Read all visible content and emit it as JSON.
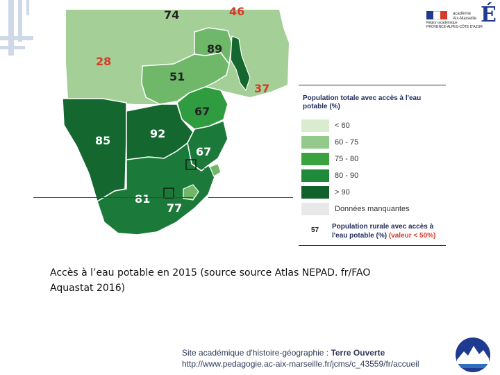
{
  "map": {
    "labels": [
      {
        "id": "74",
        "text": "74",
        "color": "#222222"
      },
      {
        "id": "46",
        "text": "46",
        "color": "#d63a2a"
      },
      {
        "id": "89",
        "text": "89",
        "color": "#222222"
      },
      {
        "id": "28",
        "text": "28",
        "color": "#d63a2a"
      },
      {
        "id": "51",
        "text": "51",
        "color": "#222222"
      },
      {
        "id": "37",
        "text": "37",
        "color": "#d63a2a"
      },
      {
        "id": "67a",
        "text": "67",
        "color": "#222222"
      },
      {
        "id": "85",
        "text": "85",
        "color": "#ffffff"
      },
      {
        "id": "92",
        "text": "92",
        "color": "#ffffff"
      },
      {
        "id": "67b",
        "text": "67",
        "color": "#ffffff"
      },
      {
        "id": "81",
        "text": "81",
        "color": "#ffffff"
      },
      {
        "id": "77",
        "text": "77",
        "color": "#ffffff"
      }
    ]
  },
  "logo": {
    "small_text": "académie\nAix-Marseille",
    "region_text": "Région académique\nPROVENCE-ALPES-CÔTE D'AZUR",
    "initial": "É"
  },
  "legend": {
    "title": "Population totale avec accès à l'eau potable (%)",
    "items": [
      {
        "label": "< 60",
        "color": "#d9ecd0"
      },
      {
        "label": "60 - 75",
        "color": "#93c98a"
      },
      {
        "label": "75 - 80",
        "color": "#3aa33f"
      },
      {
        "label": "80 - 90",
        "color": "#1f8a3a"
      },
      {
        "label": "> 90",
        "color": "#11612c"
      },
      {
        "label": "Données manquantes",
        "color": "#e8e8e8"
      }
    ],
    "rural_example": "57",
    "rural_title": "Population rurale avec accès à l'eau potable (%) ",
    "rural_red": "(valeur < 50%)"
  },
  "caption": "Accès à l’eau potable en 2015 (source source Atlas NEPAD. fr/FAO Aquastat 2016)",
  "footer": {
    "line1_prefix": "Site académique d'histoire-géographie : ",
    "line1_bold": "Terre Ouverte",
    "line2": "http://www.pedagogie.ac-aix-marseille.fr/jcms/c_43559/fr/accueil"
  },
  "colors": {
    "light": "#a4cf97",
    "mid": "#6fb86a",
    "bright": "#2f9c40",
    "dark": "#1b7a3a",
    "darkest": "#14682f"
  }
}
